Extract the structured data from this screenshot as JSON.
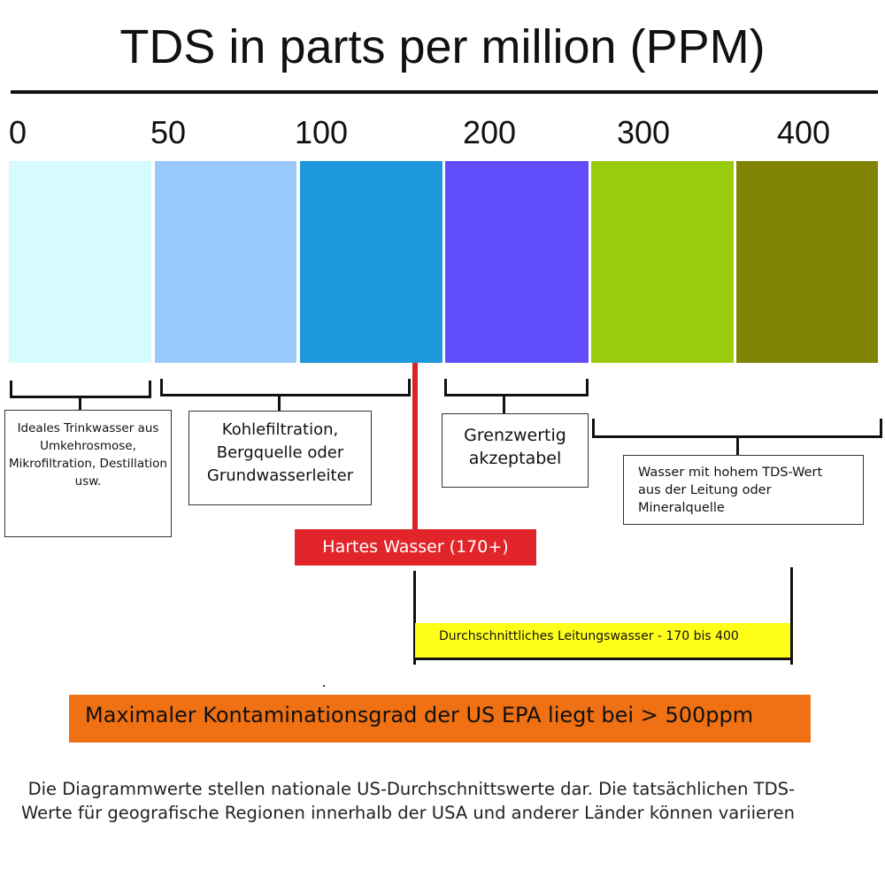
{
  "title": "TDS in parts per million (PPM)",
  "scale": {
    "ticks": [
      "0",
      "50",
      "100",
      "200",
      "300",
      "400"
    ],
    "segments": [
      {
        "color": "#d6fbff"
      },
      {
        "color": "#99c9fa"
      },
      {
        "color": "#1e98dc"
      },
      {
        "color": "#624dfb"
      },
      {
        "color": "#99cc0d"
      },
      {
        "color": "#818302"
      }
    ]
  },
  "categories": {
    "ideal": "Ideales Trinkwasser aus Umkehrosmose, Mikrofiltration, Destillation usw.",
    "carbon": "Kohlefiltration, Bergquelle oder Grundwasserleiter",
    "limit": "Grenzwertig akzeptabel",
    "high": "Wasser mit hohem TDS-Wert aus der Leitung oder Mineralquelle"
  },
  "hard_water": {
    "label": "Hartes Wasser (170+)",
    "color": "#e2242b"
  },
  "tap_water": {
    "label": "Durchschnittliches Leitungswasser - 170 bis 400",
    "color": "#ffff1a"
  },
  "epa": {
    "label": "Maximaler Kontaminationsgrad der US EPA liegt bei > 500ppm",
    "color": "#f07014"
  },
  "footnote": "Die Diagrammwerte stellen nationale US-Durchschnittswerte dar. Die tatsächlichen TDS-Werte für geografische Regionen innerhalb der USA und anderer Länder können variieren"
}
